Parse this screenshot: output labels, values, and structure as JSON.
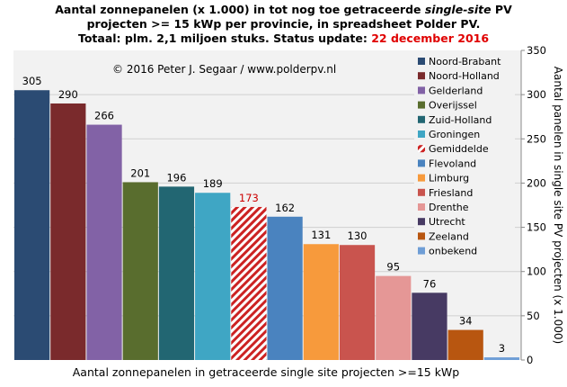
{
  "chart_data": {
    "type": "bar",
    "title_line1_a": "Aantal zonnepanelen (x 1.000) in tot nog toe getraceerde ",
    "title_line1_em": "single-site",
    "title_line1_b": " PV",
    "title_line2": "projecten >= 15 kWp per provincie, in spreadsheet Polder PV.",
    "title_line3_a": "Totaal: plm. 2,1 miljoen stuks. Status update: ",
    "title_line3_date": "22 december 2016",
    "copyright": "© 2016 Peter J. Segaar / www.polderpv.nl",
    "xlabel": "Aantal zonnepanelen in getraceerde single site projecten >=15 kWp",
    "ylabel": "Aantal panelen in single site PV projecten (x 1.000)",
    "ylim": [
      0,
      350
    ],
    "yticks": [
      0,
      50,
      100,
      150,
      200,
      250,
      300,
      350
    ],
    "grid": true,
    "legend_position": "top-right",
    "bars": [
      {
        "name": "Noord-Brabant",
        "value": 305,
        "color": "#2b4b73"
      },
      {
        "name": "Noord-Holland",
        "value": 290,
        "color": "#7a2a2c"
      },
      {
        "name": "Gelderland",
        "value": 266,
        "color": "#8262a6"
      },
      {
        "name": "Overijssel",
        "value": 201,
        "color": "#596d2e"
      },
      {
        "name": "Zuid-Holland",
        "value": 196,
        "color": "#226672"
      },
      {
        "name": "Groningen",
        "value": 189,
        "color": "#3fa6c4"
      },
      {
        "name": "Gemiddelde",
        "value": 173,
        "color": "#cc2222",
        "hatched": true,
        "label_color": "#cc0000"
      },
      {
        "name": "Flevoland",
        "value": 162,
        "color": "#4a83bf"
      },
      {
        "name": "Limburg",
        "value": 131,
        "color": "#f79a3c"
      },
      {
        "name": "Friesland",
        "value": 130,
        "color": "#c9544e"
      },
      {
        "name": "Drenthe",
        "value": 95,
        "color": "#e59796"
      },
      {
        "name": "Utrecht",
        "value": 76,
        "color": "#473a63"
      },
      {
        "name": "Zeeland",
        "value": 34,
        "color": "#b85610"
      },
      {
        "name": "onbekend",
        "value": 3,
        "color": "#6f9ed6"
      }
    ]
  }
}
